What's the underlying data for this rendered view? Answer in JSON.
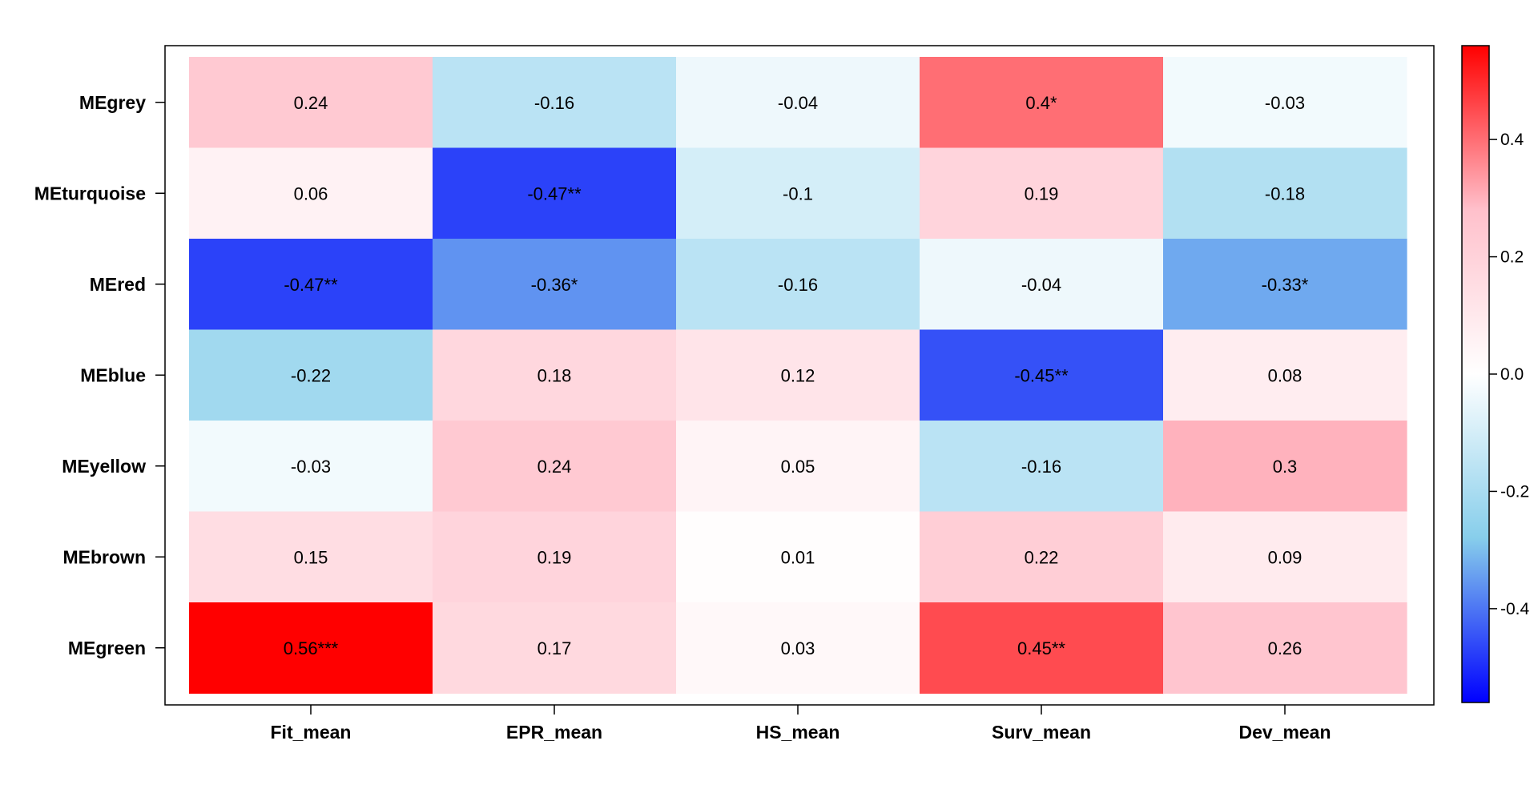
{
  "chart_data": {
    "type": "heatmap",
    "title": "",
    "xlabel": "",
    "ylabel": "",
    "rows": [
      "MEgrey",
      "MEturquoise",
      "MEred",
      "MEblue",
      "MEyellow",
      "MEbrown",
      "MEgreen"
    ],
    "columns": [
      "Fit_mean",
      "EPR_mean",
      "HS_mean",
      "Surv_mean",
      "Dev_mean"
    ],
    "values": [
      [
        0.24,
        -0.16,
        -0.04,
        0.4,
        -0.03
      ],
      [
        0.06,
        -0.47,
        -0.1,
        0.19,
        -0.18
      ],
      [
        -0.47,
        -0.36,
        -0.16,
        -0.04,
        -0.33
      ],
      [
        -0.22,
        0.18,
        0.12,
        -0.45,
        0.08
      ],
      [
        -0.03,
        0.24,
        0.05,
        -0.16,
        0.3
      ],
      [
        0.15,
        0.19,
        0.01,
        0.22,
        0.09
      ],
      [
        0.56,
        0.17,
        0.03,
        0.45,
        0.26
      ]
    ],
    "cell_labels": [
      [
        "0.24",
        "-0.16",
        "-0.04",
        "0.4*",
        "-0.03"
      ],
      [
        "0.06",
        "-0.47**",
        "-0.1",
        "0.19",
        "-0.18"
      ],
      [
        "-0.47**",
        "-0.36*",
        "-0.16",
        "-0.04",
        "-0.33*"
      ],
      [
        "-0.22",
        "0.18",
        "0.12",
        "-0.45**",
        "0.08"
      ],
      [
        "-0.03",
        "0.24",
        "0.05",
        "-0.16",
        "0.3"
      ],
      [
        "0.15",
        "0.19",
        "0.01",
        "0.22",
        "0.09"
      ],
      [
        "0.56***",
        "0.17",
        "0.03",
        "0.45**",
        "0.26"
      ]
    ],
    "color_scale": {
      "range": [
        -0.56,
        0.56
      ],
      "stops": [
        {
          "value": -0.56,
          "color": "#0000ff"
        },
        {
          "value": -0.28,
          "color": "#87ceeb"
        },
        {
          "value": 0.0,
          "color": "#ffffff"
        },
        {
          "value": 0.28,
          "color": "#ffc0cb"
        },
        {
          "value": 0.56,
          "color": "#ff0000"
        }
      ],
      "ticks": [
        -0.4,
        -0.2,
        0.0,
        0.2,
        0.4
      ],
      "tick_labels": [
        "-0.4",
        "-0.2",
        "0.0",
        "0.2",
        "0.4"
      ],
      "placement": "right"
    },
    "grid": false,
    "legend": "colorbar-right"
  }
}
